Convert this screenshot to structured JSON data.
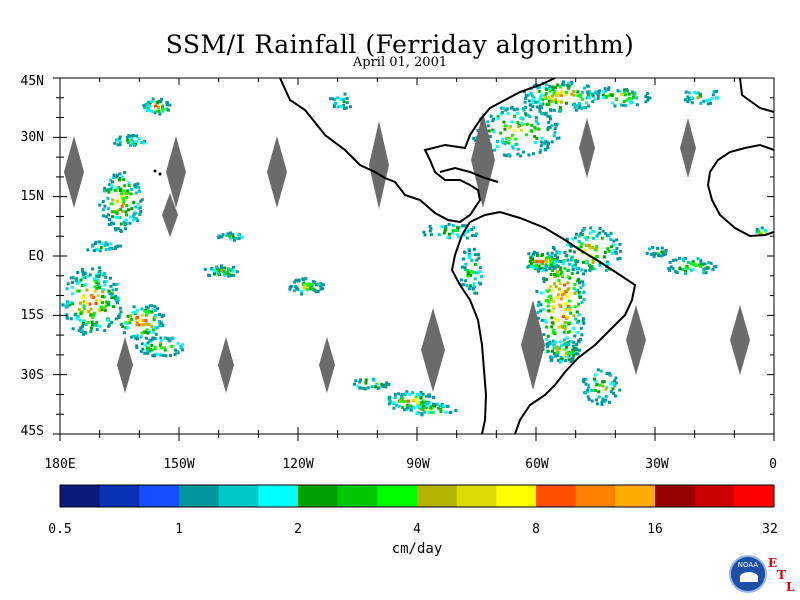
{
  "title": "SSM/I Rainfall (Ferriday algorithm)",
  "subtitle": "April 01, 2001",
  "map": {
    "type": "map",
    "projection": "equirectangular",
    "lon_range": [
      -180,
      0
    ],
    "lat_range": [
      -45,
      45
    ],
    "lat_labels": [
      "45N",
      "30N",
      "15N",
      "EQ",
      "15S",
      "30S",
      "45S"
    ],
    "lon_labels": [
      "180E",
      "150W",
      "120W",
      "90W",
      "60W",
      "30W",
      "0"
    ],
    "land_outline_color": "#000000",
    "no_data_color": "#6b6b6b"
  },
  "colorbar": {
    "units": "cm/day",
    "tick_labels": [
      "0.5",
      "1",
      "2",
      "4",
      "8",
      "16",
      "32"
    ],
    "colors": [
      "#0a1a7a",
      "#0a32b4",
      "#1450ff",
      "#00969b",
      "#00c8c8",
      "#00ffff",
      "#00a000",
      "#00c800",
      "#00ff00",
      "#b4b400",
      "#dcdc00",
      "#ffff00",
      "#ff5000",
      "#ff8200",
      "#ffaa00",
      "#960000",
      "#c80000",
      "#ff0000"
    ]
  },
  "logo": {
    "noaa_text": "NOAA",
    "etl_letters": [
      "E",
      "T",
      "L"
    ]
  }
}
